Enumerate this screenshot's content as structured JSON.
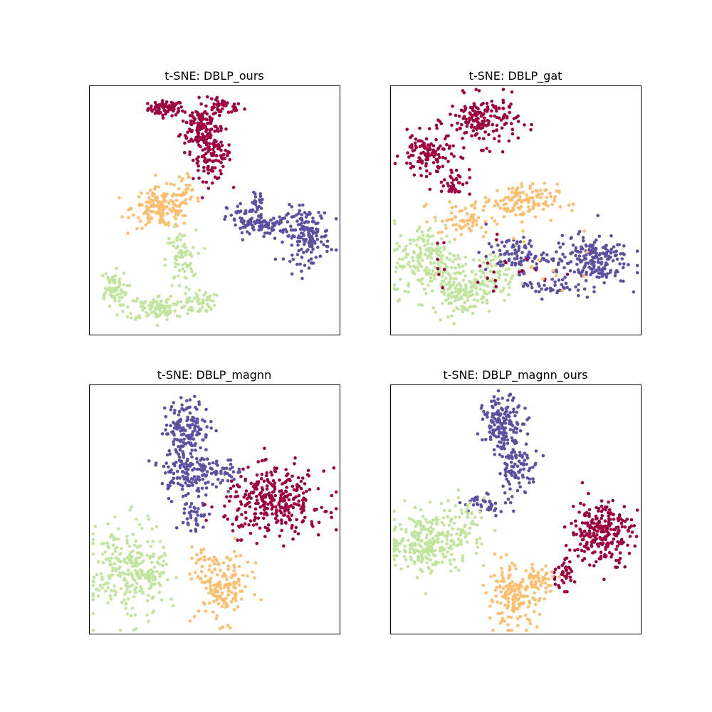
{
  "colors": {
    "class_0": "#9e0142",
    "class_1": "#fdbf6f",
    "class_2": "#5e4fa2",
    "class_3": "#c2e59e"
  },
  "chart_data": [
    {
      "type": "scatter",
      "title": "t-SNE: DBLP_ours",
      "xlabel": "",
      "ylabel": "",
      "xlim": [
        0,
        100
      ],
      "ylim": [
        0,
        100
      ],
      "ticks": false,
      "grid": false,
      "legend": false,
      "clusters": [
        {
          "class": 0,
          "x": 30.5,
          "y": 91.0,
          "sx": 3.5,
          "sy": 1.5,
          "n": 70
        },
        {
          "class": 0,
          "x": 53.5,
          "y": 91.5,
          "sx": 4.0,
          "sy": 1.5,
          "n": 40
        },
        {
          "class": 0,
          "x": 44.0,
          "y": 84.0,
          "sx": 3.8,
          "sy": 5.0,
          "n": 130
        },
        {
          "class": 0,
          "x": 49.0,
          "y": 72.0,
          "sx": 3.8,
          "sy": 5.0,
          "n": 110
        },
        {
          "class": 1,
          "x": 29.0,
          "y": 51.0,
          "sx": 6.0,
          "sy": 4.0,
          "n": 160
        },
        {
          "class": 1,
          "x": 38.5,
          "y": 60.0,
          "sx": 2.0,
          "sy": 3.0,
          "n": 25
        },
        {
          "class": 3,
          "x": 36.5,
          "y": 30.0,
          "sx": 3.0,
          "sy": 6.0,
          "n": 70
        },
        {
          "class": 3,
          "x": 28.5,
          "y": 11.0,
          "sx": 7.0,
          "sy": 2.5,
          "n": 120
        },
        {
          "class": 3,
          "x": 9.0,
          "y": 18.5,
          "sx": 3.0,
          "sy": 3.5,
          "n": 60
        },
        {
          "class": 3,
          "x": 44.5,
          "y": 13.5,
          "sx": 2.8,
          "sy": 2.5,
          "n": 40
        },
        {
          "class": 2,
          "x": 63.0,
          "y": 46.0,
          "sx": 4.0,
          "sy": 3.5,
          "n": 60
        },
        {
          "class": 2,
          "x": 72.0,
          "y": 44.0,
          "sx": 4.0,
          "sy": 2.0,
          "n": 60
        },
        {
          "class": 2,
          "x": 87.0,
          "y": 40.0,
          "sx": 4.5,
          "sy": 5.5,
          "n": 160
        },
        {
          "class": 2,
          "x": 66.5,
          "y": 53.5,
          "sx": 1.5,
          "sy": 2.0,
          "n": 15
        }
      ]
    },
    {
      "type": "scatter",
      "title": "t-SNE: DBLP_gat",
      "xlabel": "",
      "ylabel": "",
      "xlim": [
        0,
        100
      ],
      "ylim": [
        0,
        100
      ],
      "ticks": false,
      "grid": false,
      "legend": false,
      "clusters": [
        {
          "class": 0,
          "x": 37.0,
          "y": 86.0,
          "sx": 7.0,
          "sy": 5.0,
          "n": 170
        },
        {
          "class": 0,
          "x": 14.0,
          "y": 72.5,
          "sx": 5.0,
          "sy": 4.0,
          "n": 110
        },
        {
          "class": 0,
          "x": 25.0,
          "y": 62.0,
          "sx": 3.5,
          "sy": 3.0,
          "n": 40
        },
        {
          "class": 1,
          "x": 51.5,
          "y": 53.5,
          "sx": 7.5,
          "sy": 3.5,
          "n": 130
        },
        {
          "class": 1,
          "x": 29.0,
          "y": 46.0,
          "sx": 6.0,
          "sy": 3.5,
          "n": 60
        },
        {
          "class": 3,
          "x": 15.0,
          "y": 30.0,
          "sx": 7.0,
          "sy": 7.5,
          "n": 200
        },
        {
          "class": 3,
          "x": 29.0,
          "y": 18.0,
          "sx": 6.0,
          "sy": 5.0,
          "n": 140
        },
        {
          "class": 3,
          "x": 42.0,
          "y": 25.0,
          "sx": 5.0,
          "sy": 4.0,
          "n": 60
        },
        {
          "class": 2,
          "x": 50.0,
          "y": 32.0,
          "sx": 6.0,
          "sy": 3.5,
          "n": 90
        },
        {
          "class": 2,
          "x": 80.0,
          "y": 30.0,
          "sx": 7.5,
          "sy": 5.0,
          "n": 200
        },
        {
          "class": 2,
          "x": 63.0,
          "y": 20.0,
          "sx": 5.0,
          "sy": 2.5,
          "n": 40
        },
        {
          "class": 0,
          "x": 40.0,
          "y": 28.0,
          "sx": 14.0,
          "sy": 8.0,
          "n": 25
        },
        {
          "class": 1,
          "x": 60.0,
          "y": 30.0,
          "sx": 12.0,
          "sy": 8.0,
          "n": 15
        }
      ]
    },
    {
      "type": "scatter",
      "title": "t-SNE: DBLP_magnn",
      "xlabel": "",
      "ylabel": "",
      "xlim": [
        0,
        100
      ],
      "ylim": [
        0,
        100
      ],
      "ticks": false,
      "grid": false,
      "legend": false,
      "clusters": [
        {
          "class": 2,
          "x": 39.0,
          "y": 83.0,
          "sx": 4.5,
          "sy": 5.5,
          "n": 150
        },
        {
          "class": 2,
          "x": 38.5,
          "y": 65.0,
          "sx": 5.0,
          "sy": 5.0,
          "n": 130
        },
        {
          "class": 2,
          "x": 53.0,
          "y": 65.0,
          "sx": 4.0,
          "sy": 2.5,
          "n": 40
        },
        {
          "class": 2,
          "x": 42.0,
          "y": 47.0,
          "sx": 2.5,
          "sy": 5.0,
          "n": 40
        },
        {
          "class": 0,
          "x": 74.0,
          "y": 53.0,
          "sx": 10.0,
          "sy": 6.5,
          "n": 330
        },
        {
          "class": 1,
          "x": 53.5,
          "y": 19.0,
          "sx": 5.5,
          "sy": 7.0,
          "n": 150
        },
        {
          "class": 1,
          "x": 45.0,
          "y": 29.0,
          "sx": 2.5,
          "sy": 4.0,
          "n": 20
        },
        {
          "class": 3,
          "x": 15.5,
          "y": 25.0,
          "sx": 7.5,
          "sy": 9.5,
          "n": 260
        },
        {
          "class": 3,
          "x": 26.5,
          "y": 24.0,
          "sx": 2.5,
          "sy": 3.0,
          "n": 25
        }
      ]
    },
    {
      "type": "scatter",
      "title": "t-SNE: DBLP_magnn_ours",
      "xlabel": "",
      "ylabel": "",
      "xlim": [
        0,
        100
      ],
      "ylim": [
        0,
        100
      ],
      "ticks": false,
      "grid": false,
      "legend": false,
      "clusters": [
        {
          "class": 2,
          "x": 45.0,
          "y": 84.0,
          "sx": 4.0,
          "sy": 5.5,
          "n": 160
        },
        {
          "class": 2,
          "x": 51.0,
          "y": 66.0,
          "sx": 4.0,
          "sy": 4.0,
          "n": 80
        },
        {
          "class": 2,
          "x": 38.5,
          "y": 52.5,
          "sx": 5.0,
          "sy": 2.0,
          "n": 40
        },
        {
          "class": 0,
          "x": 84.0,
          "y": 41.0,
          "sx": 6.0,
          "sy": 6.5,
          "n": 250
        },
        {
          "class": 0,
          "x": 68.5,
          "y": 24.0,
          "sx": 2.5,
          "sy": 3.0,
          "n": 40
        },
        {
          "class": 1,
          "x": 49.0,
          "y": 15.0,
          "sx": 5.0,
          "sy": 6.0,
          "n": 170
        },
        {
          "class": 1,
          "x": 60.0,
          "y": 22.0,
          "sx": 3.5,
          "sy": 3.0,
          "n": 40
        },
        {
          "class": 3,
          "x": 13.5,
          "y": 36.5,
          "sx": 7.0,
          "sy": 6.0,
          "n": 220
        },
        {
          "class": 3,
          "x": 28.0,
          "y": 42.0,
          "sx": 5.0,
          "sy": 6.0,
          "n": 90
        }
      ]
    }
  ]
}
